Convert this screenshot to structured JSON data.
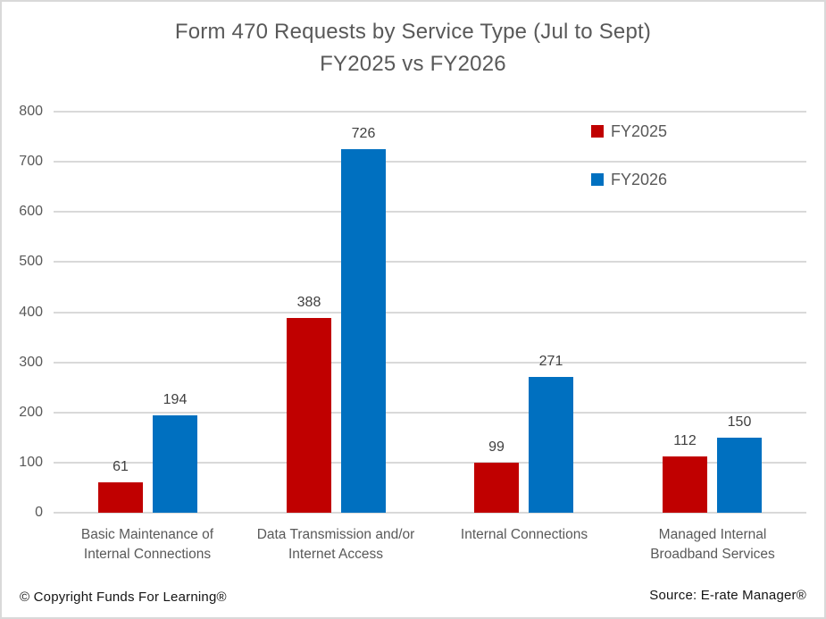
{
  "chart_data": {
    "type": "bar",
    "title": "Form 470 Requests by Service Type (Jul to Sept)",
    "subtitle": "FY2025 vs FY2026",
    "categories": [
      "Basic Maintenance of Internal Connections",
      "Data Transmission and/or Internet Access",
      "Internal Connections",
      "Managed Internal Broadband Services"
    ],
    "series": [
      {
        "name": "FY2025",
        "color": "#C00000",
        "values": [
          61,
          388,
          99,
          112
        ]
      },
      {
        "name": "FY2026",
        "color": "#0070C0",
        "values": [
          194,
          726,
          271,
          150
        ]
      }
    ],
    "ylim": [
      0,
      800
    ],
    "ytick_step": 100,
    "grid": "horizontal",
    "legend_position": "top-right-inside",
    "gridline_color": "#D9D9D9",
    "title_color": "#595959",
    "axis_text_color": "#595959",
    "data_label_color": "#404040"
  },
  "footer": {
    "left": "© Copyright Funds For Learning®",
    "right": "Source: E-rate Manager®"
  }
}
